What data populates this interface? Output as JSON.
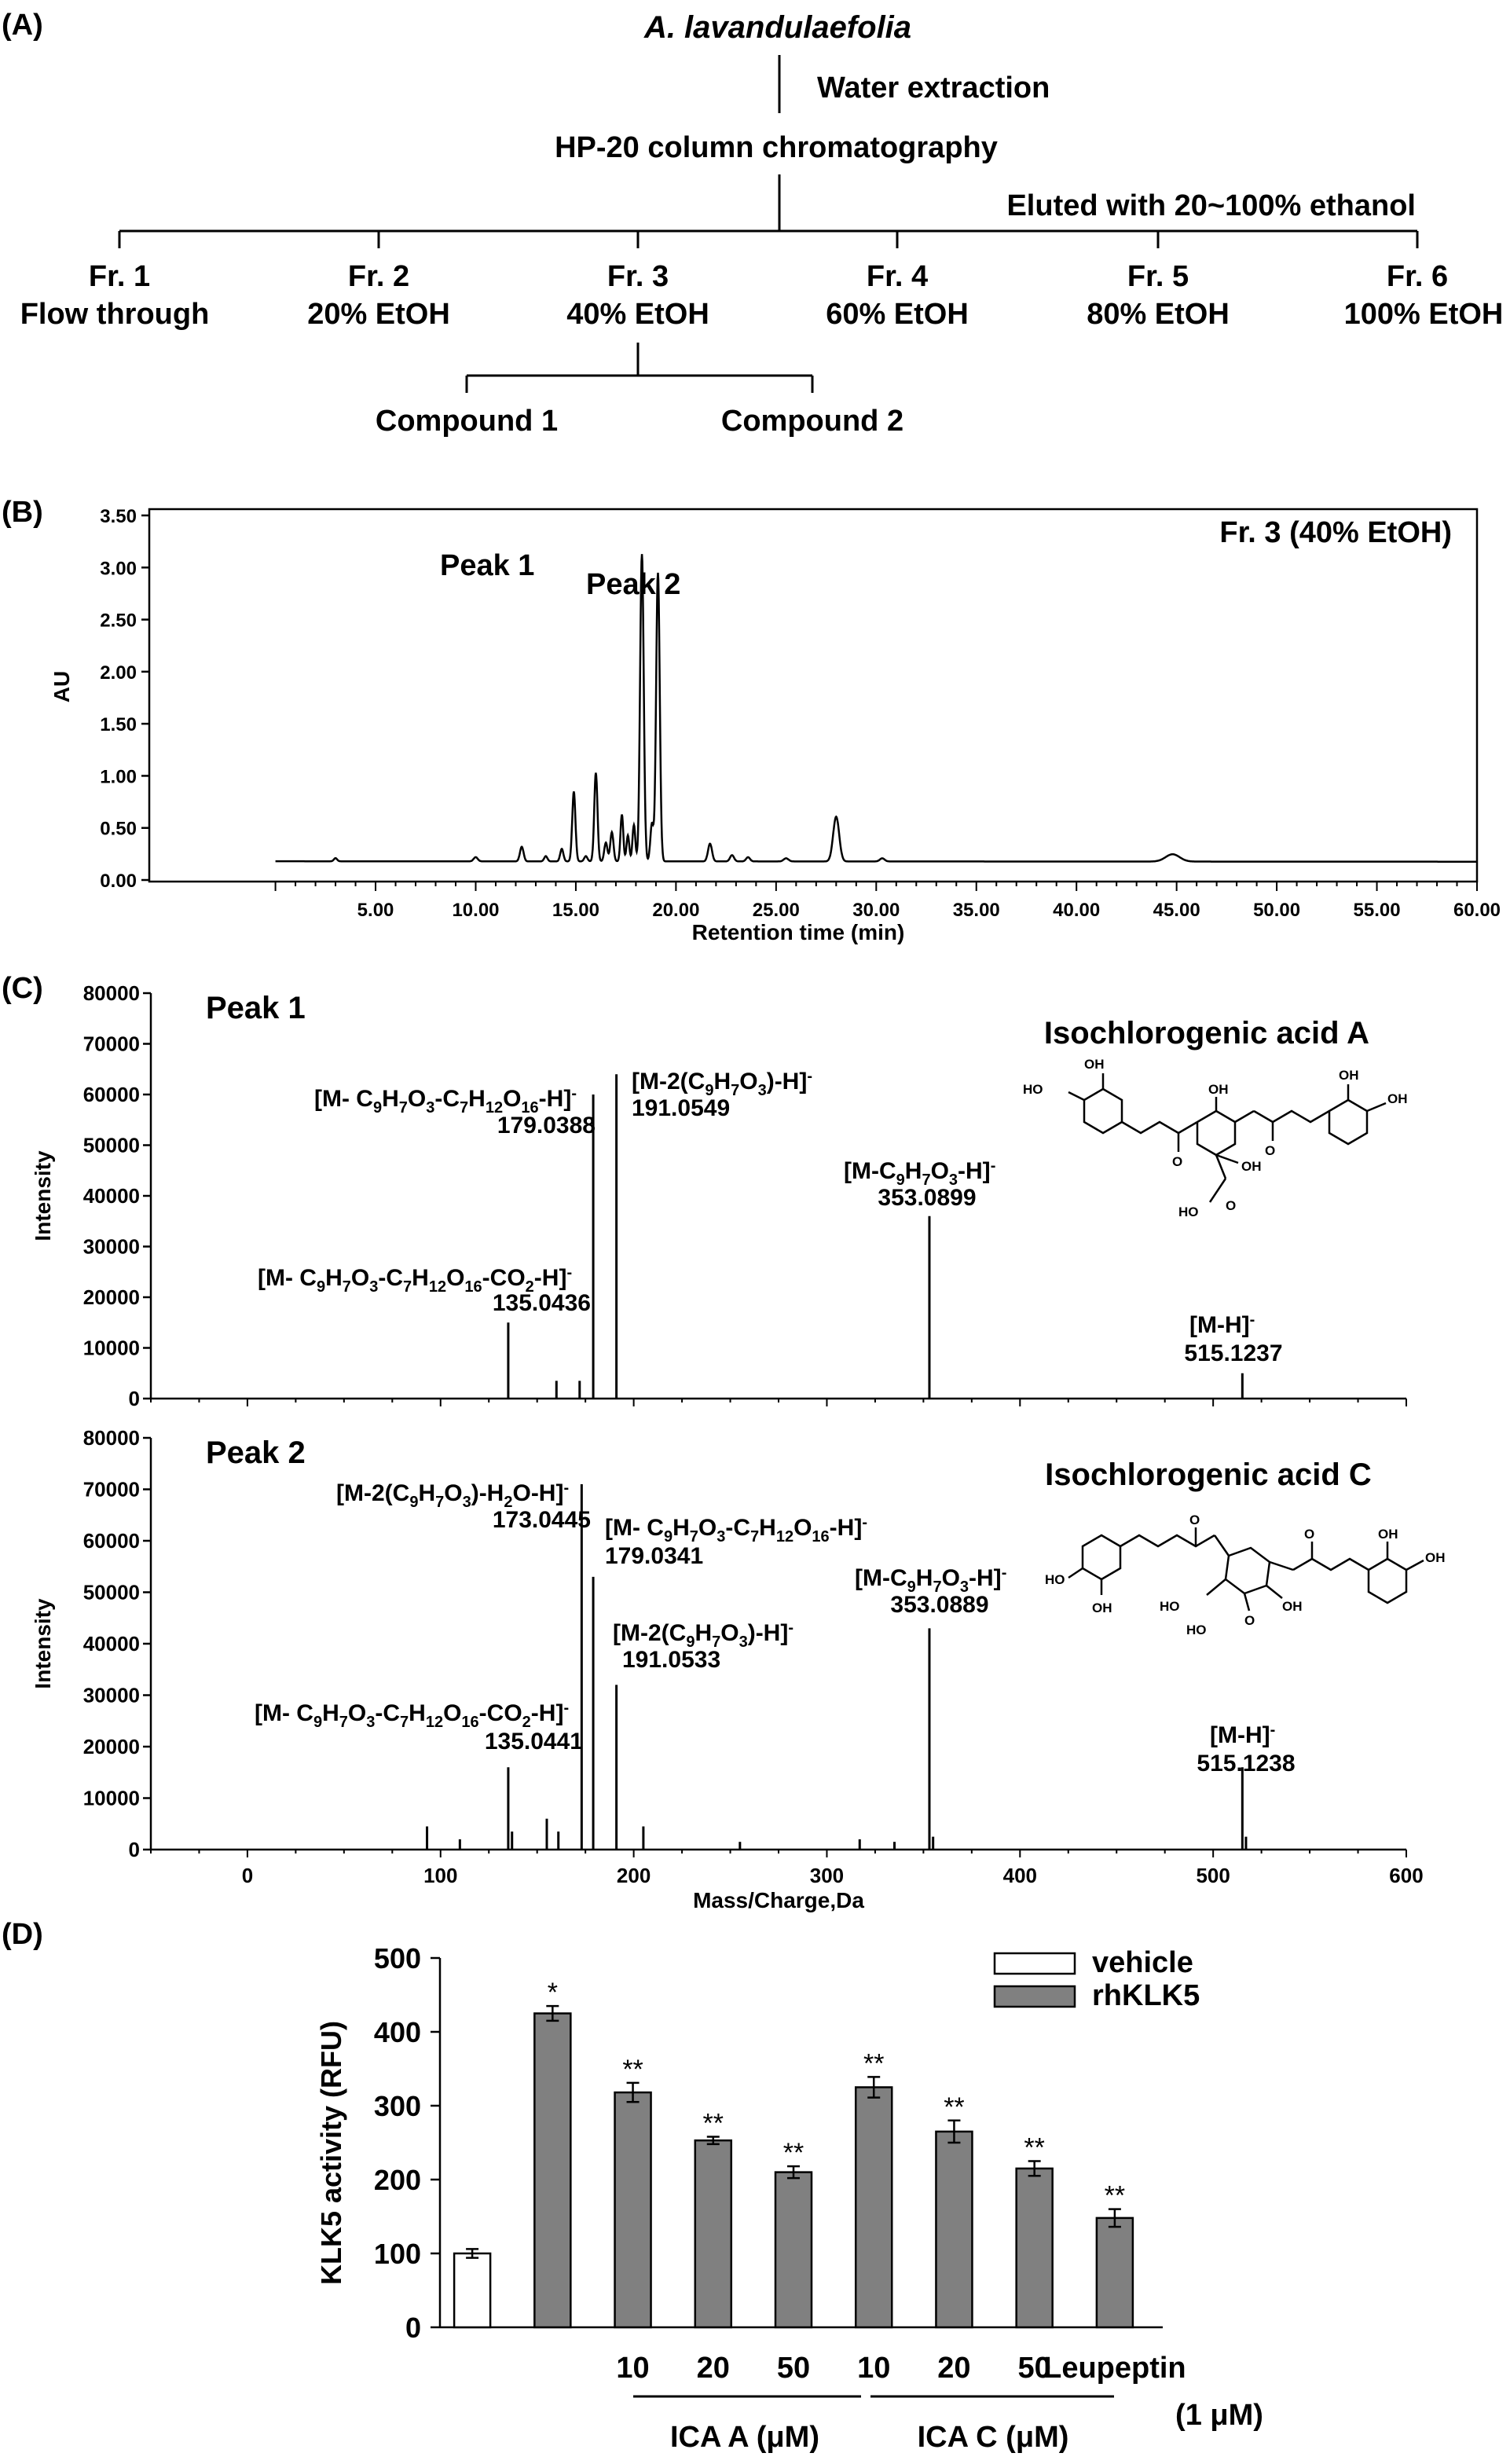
{
  "panels": {
    "A": "(A)",
    "B": "(B)",
    "C": "(C)",
    "D": "(D)"
  },
  "scheme": {
    "plant": "A. lavandulaefolia",
    "step1": "Water extraction",
    "step2": "HP-20 column chromatography",
    "elution": "Eluted with 20~100% ethanol",
    "fractions": [
      {
        "name": "Fr. 1",
        "desc": "Flow through"
      },
      {
        "name": "Fr. 2",
        "desc": "20% EtOH"
      },
      {
        "name": "Fr. 3",
        "desc": "40% EtOH"
      },
      {
        "name": "Fr. 4",
        "desc": "60% EtOH"
      },
      {
        "name": "Fr. 5",
        "desc": "80% EtOH"
      },
      {
        "name": "Fr. 6",
        "desc": "100% EtOH"
      }
    ],
    "compounds": [
      "Compound 1",
      "Compound 2"
    ]
  },
  "chart_data": [
    {
      "panel": "B",
      "type": "line",
      "title": "Fr. 3 (40% EtOH)",
      "xlabel": "Retention time (min)",
      "ylabel": "AU",
      "xlim": [
        0,
        60
      ],
      "ylim": [
        0,
        3.5
      ],
      "xticks": [
        5,
        10,
        15,
        20,
        25,
        30,
        35,
        40,
        45,
        50,
        55,
        60
      ],
      "yticks": [
        0,
        0.5,
        1.0,
        1.5,
        2.0,
        2.5,
        3.0,
        3.5
      ],
      "xtick_labels": [
        "5.00",
        "10.00",
        "15.00",
        "20.00",
        "25.00",
        "30.00",
        "35.00",
        "40.00",
        "45.00",
        "50.00",
        "55.00",
        "60.00"
      ],
      "ytick_labels": [
        "0.00",
        "0.50",
        "1.00",
        "1.50",
        "2.00",
        "2.50",
        "3.00",
        "3.50"
      ],
      "baseline": 0.18,
      "peaks": [
        {
          "rt": 3.0,
          "h": 0.03,
          "w": 0.08
        },
        {
          "rt": 10.0,
          "h": 0.04,
          "w": 0.1
        },
        {
          "rt": 12.3,
          "h": 0.14,
          "w": 0.09
        },
        {
          "rt": 13.5,
          "h": 0.05,
          "w": 0.08
        },
        {
          "rt": 14.3,
          "h": 0.12,
          "w": 0.08
        },
        {
          "rt": 14.9,
          "h": 0.67,
          "w": 0.08
        },
        {
          "rt": 15.5,
          "h": 0.05,
          "w": 0.08
        },
        {
          "rt": 16.0,
          "h": 0.85,
          "w": 0.08
        },
        {
          "rt": 16.5,
          "h": 0.18,
          "w": 0.08
        },
        {
          "rt": 16.8,
          "h": 0.28,
          "w": 0.08
        },
        {
          "rt": 17.3,
          "h": 0.45,
          "w": 0.07
        },
        {
          "rt": 17.6,
          "h": 0.25,
          "w": 0.07
        },
        {
          "rt": 17.9,
          "h": 0.35,
          "w": 0.07
        },
        {
          "rt": 18.3,
          "h": 2.95,
          "w": 0.09
        },
        {
          "rt": 18.8,
          "h": 0.36,
          "w": 0.08
        },
        {
          "rt": 19.1,
          "h": 2.77,
          "w": 0.09
        },
        {
          "rt": 21.7,
          "h": 0.17,
          "w": 0.1
        },
        {
          "rt": 22.8,
          "h": 0.06,
          "w": 0.1
        },
        {
          "rt": 23.6,
          "h": 0.04,
          "w": 0.1
        },
        {
          "rt": 25.5,
          "h": 0.03,
          "w": 0.12
        },
        {
          "rt": 28.0,
          "h": 0.43,
          "w": 0.15
        },
        {
          "rt": 30.3,
          "h": 0.03,
          "w": 0.12
        },
        {
          "rt": 44.8,
          "h": 0.07,
          "w": 0.35
        }
      ],
      "annotations": [
        "Peak 1",
        "Peak 2"
      ]
    },
    {
      "panel": "C-peak1",
      "type": "bar",
      "label": "Peak 1",
      "compound": "Isochlorogenic acid A",
      "xlabel": "",
      "ylabel": "Intensity",
      "xlim": [
        -50,
        600
      ],
      "ylim": [
        0,
        80000
      ],
      "yticks": [
        0,
        10000,
        20000,
        30000,
        40000,
        50000,
        60000,
        70000,
        80000
      ],
      "ytick_labels": [
        "0",
        "10000",
        "20000",
        "30000",
        "40000",
        "50000",
        "60000",
        "70000",
        "80000"
      ],
      "sticks": [
        {
          "mz": 135.0436,
          "i": 15000
        },
        {
          "mz": 160,
          "i": 3500
        },
        {
          "mz": 172,
          "i": 3500
        },
        {
          "mz": 179.0388,
          "i": 60000
        },
        {
          "mz": 191.0549,
          "i": 64000
        },
        {
          "mz": 353.0899,
          "i": 36000
        },
        {
          "mz": 515.1237,
          "i": 5000
        }
      ],
      "labels": [
        {
          "ion": "[M- C9H7O3-C7H12O16-CO2-H]-",
          "value": "135.0436"
        },
        {
          "ion": "[M- C9H7O3-C7H12O16-H]-",
          "value": "179.0388"
        },
        {
          "ion": "[M-2(C9H7O3)-H]-",
          "value": "191.0549"
        },
        {
          "ion": "[M-C9H7O3-H]-",
          "value": "353.0899"
        },
        {
          "ion": "[M-H]-",
          "value": "515.1237"
        }
      ]
    },
    {
      "panel": "C-peak2",
      "type": "bar",
      "label": "Peak 2",
      "compound": "Isochlorogenic acid C",
      "xlabel": "Mass/Charge,Da",
      "ylabel": "Intensity",
      "xlim": [
        -50,
        600
      ],
      "ylim": [
        0,
        80000
      ],
      "xticks": [
        0,
        100,
        200,
        300,
        400,
        500,
        600
      ],
      "xtick_labels": [
        "0",
        "100",
        "200",
        "300",
        "400",
        "500",
        "600"
      ],
      "yticks": [
        0,
        10000,
        20000,
        30000,
        40000,
        50000,
        60000,
        70000,
        80000
      ],
      "ytick_labels": [
        "0",
        "10000",
        "20000",
        "30000",
        "40000",
        "50000",
        "60000",
        "70000",
        "80000"
      ],
      "sticks": [
        {
          "mz": 93,
          "i": 4500
        },
        {
          "mz": 110,
          "i": 2000
        },
        {
          "mz": 135.0441,
          "i": 16000
        },
        {
          "mz": 137,
          "i": 3500
        },
        {
          "mz": 155,
          "i": 6000
        },
        {
          "mz": 161,
          "i": 3500
        },
        {
          "mz": 173.0445,
          "i": 71000
        },
        {
          "mz": 179.0341,
          "i": 53000
        },
        {
          "mz": 191.0533,
          "i": 32000
        },
        {
          "mz": 205,
          "i": 4500
        },
        {
          "mz": 255,
          "i": 1500
        },
        {
          "mz": 317,
          "i": 2000
        },
        {
          "mz": 335,
          "i": 1500
        },
        {
          "mz": 353.0889,
          "i": 43000
        },
        {
          "mz": 355,
          "i": 2500
        },
        {
          "mz": 515.1238,
          "i": 16000
        },
        {
          "mz": 517,
          "i": 2500
        }
      ],
      "labels": [
        {
          "ion": "[M- C9H7O3-C7H12O16-CO2-H]-",
          "value": "135.0441"
        },
        {
          "ion": "[M-2(C9H7O3)-H2O-H]-",
          "value": "173.0445"
        },
        {
          "ion": "[M- C9H7O3-C7H12O16-H]-",
          "value": "179.0341"
        },
        {
          "ion": "[M-2(C9H7O3)-H]-",
          "value": "191.0533"
        },
        {
          "ion": "[M-C9H7O3-H]-",
          "value": "353.0889"
        },
        {
          "ion": "[M-H]-",
          "value": "515.1238"
        }
      ]
    },
    {
      "panel": "D",
      "type": "bar",
      "ylabel": "KLK5 activity (RFU)",
      "ylim": [
        0,
        500
      ],
      "yticks": [
        0,
        100,
        200,
        300,
        400,
        500
      ],
      "ytick_labels": [
        "0",
        "100",
        "200",
        "300",
        "400",
        "500"
      ],
      "legend": {
        "position": "top-right",
        "entries": [
          "vehicle",
          "rhKLK5"
        ]
      },
      "colors": {
        "vehicle": "#ffffff",
        "rhKLK5": "#808080"
      },
      "bars": [
        {
          "category": "",
          "series": "vehicle",
          "value": 100,
          "err": 6,
          "sig": ""
        },
        {
          "category": "",
          "series": "rhKLK5",
          "value": 425,
          "err": 10,
          "sig": "*"
        },
        {
          "category": "10",
          "group": "ICA A (μM)",
          "series": "rhKLK5",
          "value": 318,
          "err": 13,
          "sig": "**"
        },
        {
          "category": "20",
          "group": "ICA A (μM)",
          "series": "rhKLK5",
          "value": 253,
          "err": 5,
          "sig": "**"
        },
        {
          "category": "50",
          "group": "ICA A (μM)",
          "series": "rhKLK5",
          "value": 210,
          "err": 8,
          "sig": "**"
        },
        {
          "category": "10",
          "group": "ICA C (μM)",
          "series": "rhKLK5",
          "value": 325,
          "err": 14,
          "sig": "**"
        },
        {
          "category": "20",
          "group": "ICA C (μM)",
          "series": "rhKLK5",
          "value": 265,
          "err": 15,
          "sig": "**"
        },
        {
          "category": "50",
          "group": "ICA C (μM)",
          "series": "rhKLK5",
          "value": 215,
          "err": 10,
          "sig": "**"
        },
        {
          "category": "Leupeptin",
          "series": "rhKLK5",
          "value": 148,
          "err": 12,
          "sig": "**"
        }
      ],
      "group_labels": [
        "ICA A (μM)",
        "ICA C (μM)",
        "(1 μM)"
      ]
    }
  ]
}
